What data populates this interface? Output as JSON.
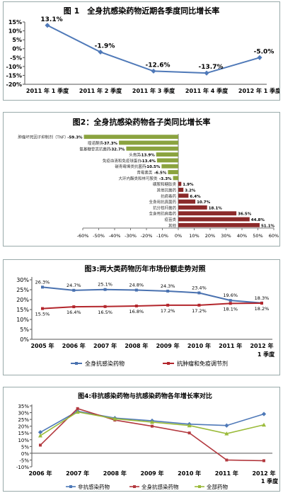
{
  "chart_data": [
    {
      "type": "line",
      "title": "图 1　全身抗感染药物近期各季度同比增长率",
      "categories": [
        "2011 年 1 季度",
        "2011 年 2 季度",
        "2011 年 3 季度",
        "2011 年 4 季度",
        "2012 年 1 季度"
      ],
      "series": [
        {
          "values": [
            13.1,
            -1.9,
            -12.6,
            -13.7,
            -5.0
          ],
          "labels": [
            "13.1%",
            "-1.9%",
            "-12.6%",
            "-13.7%",
            "-5.0%"
          ],
          "color": "#4f79b8"
        }
      ],
      "yticks": [
        15,
        10,
        5,
        0,
        -5,
        -10,
        -15,
        -20
      ],
      "ylim": [
        -20,
        15
      ],
      "grid": false
    },
    {
      "type": "bar",
      "orientation": "horizontal",
      "title": "图2：全身抗感染药物各子类同比增长率",
      "categories": [
        "肿瘤坏死因子抑制剂（TNF）",
        "喹诺酮类",
        "氨基糖苷类抗菌药",
        "头孢类",
        "免疫血清和免疫球蛋白",
        "碳青霉烯类抗菌药",
        "青霉素类",
        "大环内酯类和林可胺类",
        "磺胺和糖肽类",
        "其他抗菌药",
        "抗病毒药",
        "全身用抗真菌药",
        "抗分枝杆菌药",
        "全身用抗病毒药",
        "疫苗类",
        "其他"
      ],
      "values": [
        -59.3,
        -37.3,
        -32.7,
        -13.9,
        -13.4,
        -10.5,
        -6.5,
        -3.3,
        1.9,
        3.2,
        6.4,
        10.7,
        18.1,
        36.5,
        44.8,
        51.1
      ],
      "value_labels": [
        "-59.3%",
        "-37.3%",
        "-32.7%",
        "-13.9%",
        "-13.4%",
        "-10.5%",
        "-6.5%",
        "-3.3%",
        "1.9%",
        "3.2%",
        "6.4%",
        "10.7%",
        "18.1%",
        "36.5%",
        "44.8%",
        "51.1%"
      ],
      "neg_color": "#8ba33f",
      "pos_color": "#8b2a2a",
      "xticks": [
        "-60%",
        "-50%",
        "-40%",
        "-30%",
        "-20%",
        "-10%",
        "0%",
        "10%",
        "20%",
        "30%",
        "40%",
        "50%",
        "60%"
      ],
      "xlim": [
        -60,
        60
      ]
    },
    {
      "type": "line",
      "title": "图3:两大类药物历年市场份额走势对照",
      "categories": [
        "2005 年",
        "2006 年",
        "2007 年",
        "2008 年",
        "2009 年",
        "2010 年",
        "2011 年",
        "2012 年"
      ],
      "category_sublabels": [
        "",
        "",
        "",
        "",
        "",
        "",
        "",
        "1 季度"
      ],
      "series": [
        {
          "name": "全身抗感染药物",
          "values": [
            26.3,
            24.7,
            25.1,
            24.8,
            24.3,
            23.4,
            19.6,
            18.3
          ],
          "labels": [
            "26.3%",
            "24.7%",
            "25.1%",
            "24.8%",
            "24.3%",
            "23.4%",
            "19.6%",
            "18.3%"
          ],
          "color": "#4a72b0"
        },
        {
          "name": "抗肿瘤和免疫调节剂",
          "values": [
            15.5,
            16.4,
            16.5,
            16.8,
            17.2,
            17.2,
            18.1,
            18.2
          ],
          "labels": [
            "15.5%",
            "16.4%",
            "16.5%",
            "16.8%",
            "17.2%",
            "17.2%",
            "18.1%",
            "18.2%"
          ],
          "color": "#b3262c"
        }
      ],
      "yticks": [
        "30%",
        "25%",
        "20%",
        "15%",
        "10%",
        "5%",
        "0%"
      ],
      "ylim": [
        0,
        30
      ],
      "legend": "bottom"
    },
    {
      "type": "line",
      "title": "图4:非抗感染药物与抗感染药物各年增长率对比",
      "categories": [
        "2006 年",
        "2007 年",
        "2008 年",
        "2009 年",
        "2010 年",
        "2011 年",
        "2012 年"
      ],
      "category_sublabels": [
        "",
        "",
        "",
        "",
        "",
        "",
        "1 季度"
      ],
      "series": [
        {
          "name": "非抗感染药物",
          "values": [
            15.5,
            31,
            26,
            24,
            21.5,
            20.5,
            29
          ],
          "color": "#4f79b8"
        },
        {
          "name": "全身抗感染药物",
          "values": [
            6,
            33,
            24.5,
            20,
            15,
            -5,
            -5.5
          ],
          "color": "#b3393f"
        },
        {
          "name": "全部药物",
          "values": [
            13,
            30.5,
            25.5,
            23,
            20.5,
            14.5,
            21
          ],
          "color": "#9bbb3b"
        }
      ],
      "yticks": [
        "35%",
        "30%",
        "25%",
        "20%",
        "15%",
        "10%",
        "5%",
        "0%",
        "-5%",
        "-10%"
      ],
      "ylim": [
        -10,
        35
      ],
      "legend": "bottom"
    }
  ]
}
